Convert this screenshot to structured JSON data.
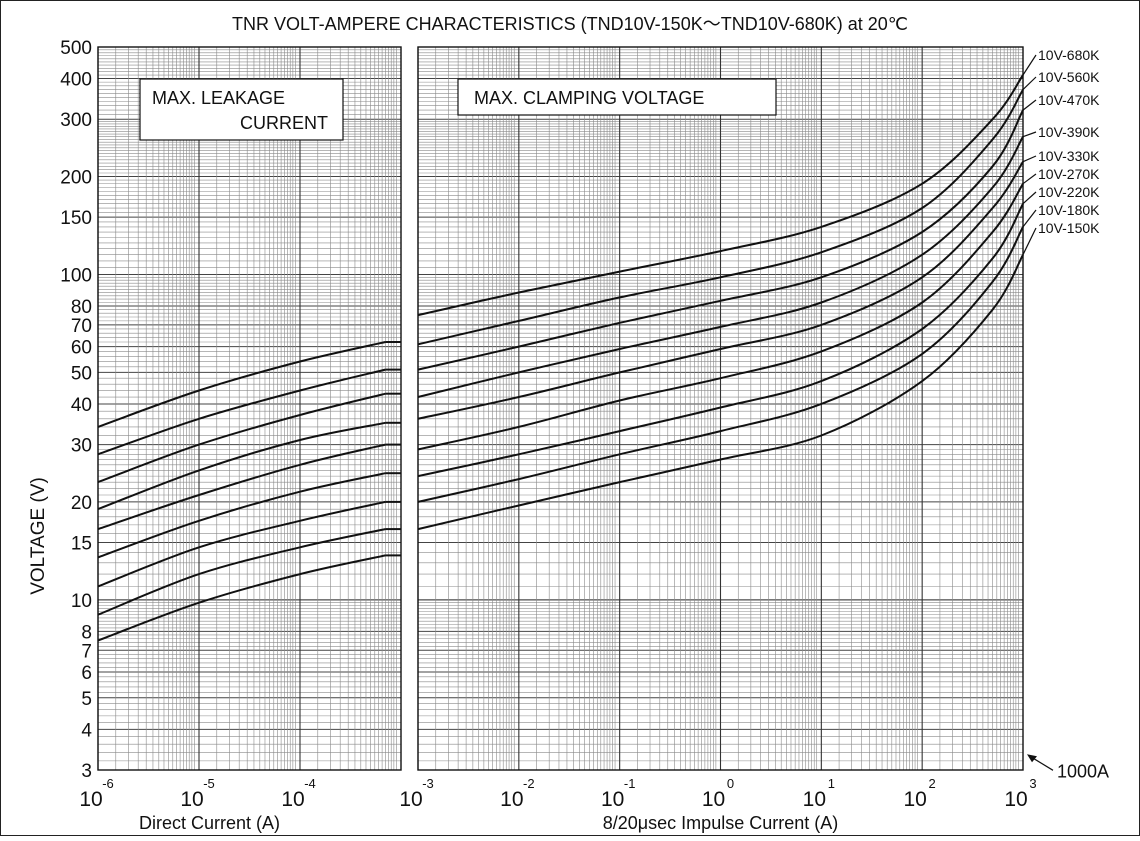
{
  "chart_data": {
    "type": "line",
    "title": "TNR VOLT-AMPERE CHARACTERISTICS (TND10V-150K〜TND10V-680K)  at 20℃",
    "ylabel": "VOLTAGE (V)",
    "y_scale": "log",
    "ylim": [
      3,
      500
    ],
    "y_ticks": [
      3,
      4,
      5,
      6,
      7,
      8,
      10,
      15,
      20,
      30,
      40,
      50,
      60,
      70,
      80,
      100,
      150,
      200,
      300,
      400,
      500
    ],
    "grid": true,
    "panels": [
      {
        "name": "dc",
        "xlabel": "Direct Current (A)",
        "annotation": [
          "MAX.    LEAKAGE",
          "CURRENT"
        ],
        "x_scale": "log",
        "xlim": [
          1e-06,
          0.001
        ],
        "x_ticks": [
          {
            "base": "10",
            "exp": "-6",
            "value": 1e-06
          },
          {
            "base": "10",
            "exp": "-5",
            "value": 1e-05
          },
          {
            "base": "10",
            "exp": "-4",
            "value": 0.0001
          }
        ]
      },
      {
        "name": "impulse",
        "xlabel": "8/20μsec  Impulse  Current (A)",
        "annotation": [
          "MAX.  CLAMPING  VOLTAGE"
        ],
        "x_scale": "log",
        "xlim": [
          0.001,
          1000
        ],
        "x_ticks": [
          {
            "base": "10",
            "exp": "-3",
            "value": 0.001
          },
          {
            "base": "10",
            "exp": "-2",
            "value": 0.01
          },
          {
            "base": "10",
            "exp": "-1",
            "value": 0.1
          },
          {
            "base": "10",
            "exp": "0",
            "value": 1
          },
          {
            "base": "10",
            "exp": "1",
            "value": 10
          },
          {
            "base": "10",
            "exp": "2",
            "value": 100
          },
          {
            "base": "10",
            "exp": "3",
            "value": 1000
          }
        ]
      }
    ],
    "series": [
      {
        "name": "10V-680K",
        "dc": {
          "x": [
            1e-06,
            1e-05,
            0.0001,
            0.0007
          ],
          "y": [
            34,
            44,
            54,
            62
          ]
        },
        "impulse": {
          "x": [
            0.001,
            0.01,
            0.1,
            1,
            10,
            100,
            500,
            1000
          ],
          "y": [
            75,
            88,
            102,
            118,
            140,
            190,
            300,
            410
          ]
        }
      },
      {
        "name": "10V-560K",
        "dc": {
          "x": [
            1e-06,
            1e-05,
            0.0001,
            0.0007
          ],
          "y": [
            28,
            36,
            44,
            51
          ]
        },
        "impulse": {
          "x": [
            0.001,
            0.01,
            0.1,
            1,
            10,
            100,
            500,
            1000
          ],
          "y": [
            61,
            72,
            85,
            98,
            117,
            160,
            260,
            370
          ]
        }
      },
      {
        "name": "10V-470K",
        "dc": {
          "x": [
            1e-06,
            1e-05,
            0.0001,
            0.0007
          ],
          "y": [
            23,
            30,
            37,
            43
          ]
        },
        "impulse": {
          "x": [
            0.001,
            0.01,
            0.1,
            1,
            10,
            100,
            500,
            1000
          ],
          "y": [
            51,
            60,
            71,
            83,
            98,
            135,
            215,
            320
          ]
        }
      },
      {
        "name": "10V-390K",
        "dc": {
          "x": [
            1e-06,
            1e-05,
            0.0001,
            0.0007
          ],
          "y": [
            19,
            25,
            31,
            35
          ]
        },
        "impulse": {
          "x": [
            0.001,
            0.01,
            0.1,
            1,
            10,
            100,
            500,
            1000
          ],
          "y": [
            42,
            50,
            59,
            69,
            82,
            115,
            185,
            265
          ]
        }
      },
      {
        "name": "10V-330K",
        "dc": {
          "x": [
            1e-06,
            1e-05,
            0.0001,
            0.0007
          ],
          "y": [
            16.5,
            21,
            26,
            30
          ]
        },
        "impulse": {
          "x": [
            0.001,
            0.01,
            0.1,
            1,
            10,
            100,
            500,
            1000
          ],
          "y": [
            36,
            42,
            50,
            59,
            70,
            98,
            160,
            222
          ]
        }
      },
      {
        "name": "10V-270K",
        "dc": {
          "x": [
            1e-06,
            1e-05,
            0.0001,
            0.0007
          ],
          "y": [
            13.5,
            17.5,
            21.5,
            24.5
          ]
        },
        "impulse": {
          "x": [
            0.001,
            0.01,
            0.1,
            1,
            10,
            100,
            500,
            1000
          ],
          "y": [
            29,
            34,
            41,
            48,
            58,
            82,
            135,
            190
          ]
        }
      },
      {
        "name": "10V-220K",
        "dc": {
          "x": [
            1e-06,
            1e-05,
            0.0001,
            0.0007
          ],
          "y": [
            11,
            14.5,
            17.5,
            20
          ]
        },
        "impulse": {
          "x": [
            0.001,
            0.01,
            0.1,
            1,
            10,
            100,
            500,
            1000
          ],
          "y": [
            24,
            28,
            33,
            39,
            47,
            68,
            112,
            165
          ]
        }
      },
      {
        "name": "10V-180K",
        "dc": {
          "x": [
            1e-06,
            1e-05,
            0.0001,
            0.0007
          ],
          "y": [
            9,
            12,
            14.5,
            16.5
          ]
        },
        "impulse": {
          "x": [
            0.001,
            0.01,
            0.1,
            1,
            10,
            100,
            500,
            1000
          ],
          "y": [
            20,
            23.5,
            28,
            33,
            40,
            57,
            95,
            140
          ]
        }
      },
      {
        "name": "10V-150K",
        "dc": {
          "x": [
            1e-06,
            1e-05,
            0.0001,
            0.0007
          ],
          "y": [
            7.5,
            9.8,
            12,
            13.7
          ]
        },
        "impulse": {
          "x": [
            0.001,
            0.01,
            0.1,
            1,
            10,
            100,
            500,
            1000
          ],
          "y": [
            16.5,
            19.5,
            23,
            27,
            32,
            47,
            78,
            115
          ]
        }
      }
    ],
    "right_annotation": {
      "text": "1000A",
      "arrow_target_y": 3.4
    }
  }
}
